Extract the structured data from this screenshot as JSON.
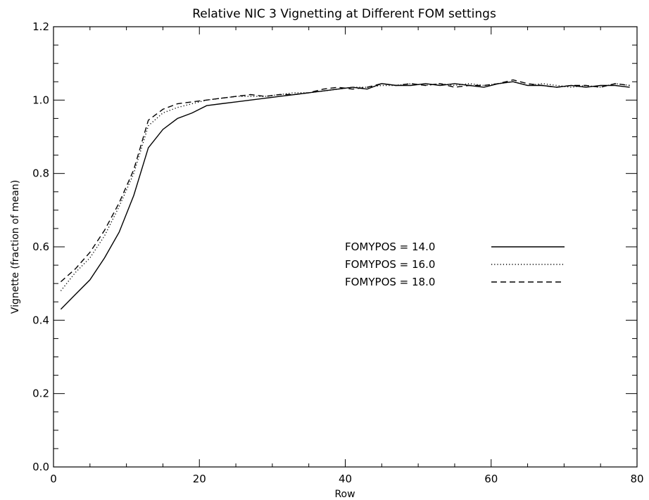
{
  "chart_data": {
    "type": "line",
    "title": "Relative NIC 3 Vignetting at Different FOM settings",
    "xlabel": "Row",
    "ylabel": "Vignette (fraction of mean)",
    "xlim": [
      0,
      80
    ],
    "ylim": [
      0.0,
      1.2
    ],
    "x_ticks": [
      "0",
      "20",
      "40",
      "60",
      "80"
    ],
    "y_ticks": [
      "0.0",
      "0.2",
      "0.4",
      "0.6",
      "0.8",
      "1.0",
      "1.2"
    ],
    "grid": false,
    "legend_position": "center-right",
    "x": [
      1,
      3,
      5,
      7,
      9,
      11,
      13,
      15,
      17,
      19,
      21,
      23,
      25,
      27,
      29,
      31,
      33,
      35,
      37,
      39,
      41,
      43,
      45,
      47,
      49,
      51,
      53,
      55,
      57,
      59,
      61,
      63,
      65,
      67,
      69,
      71,
      73,
      75,
      77,
      79
    ],
    "series": [
      {
        "name": "FOMYPOS = 14.0",
        "style": "solid",
        "values": [
          0.43,
          0.47,
          0.51,
          0.57,
          0.64,
          0.74,
          0.87,
          0.92,
          0.95,
          0.965,
          0.985,
          0.99,
          0.995,
          1.0,
          1.005,
          1.01,
          1.015,
          1.02,
          1.025,
          1.03,
          1.035,
          1.03,
          1.045,
          1.04,
          1.04,
          1.045,
          1.04,
          1.045,
          1.04,
          1.035,
          1.045,
          1.05,
          1.04,
          1.04,
          1.035,
          1.04,
          1.035,
          1.04,
          1.04,
          1.035
        ]
      },
      {
        "name": "FOMYPOS = 16.0",
        "style": "dotted",
        "values": [
          0.48,
          0.53,
          0.57,
          0.63,
          0.71,
          0.8,
          0.93,
          0.965,
          0.98,
          0.99,
          1.0,
          1.005,
          1.01,
          1.01,
          1.01,
          1.015,
          1.02,
          1.02,
          1.025,
          1.03,
          1.035,
          1.035,
          1.04,
          1.04,
          1.045,
          1.04,
          1.045,
          1.04,
          1.045,
          1.04,
          1.045,
          1.05,
          1.04,
          1.045,
          1.04,
          1.035,
          1.04,
          1.035,
          1.045,
          1.04
        ]
      },
      {
        "name": "FOMYPOS = 18.0",
        "style": "dashed",
        "values": [
          0.505,
          0.54,
          0.585,
          0.645,
          0.72,
          0.81,
          0.945,
          0.975,
          0.99,
          0.995,
          1.0,
          1.005,
          1.01,
          1.015,
          1.01,
          1.015,
          1.015,
          1.02,
          1.03,
          1.035,
          1.03,
          1.035,
          1.045,
          1.04,
          1.045,
          1.04,
          1.045,
          1.035,
          1.04,
          1.04,
          1.045,
          1.055,
          1.045,
          1.04,
          1.035,
          1.04,
          1.04,
          1.035,
          1.045,
          1.04
        ]
      }
    ]
  }
}
